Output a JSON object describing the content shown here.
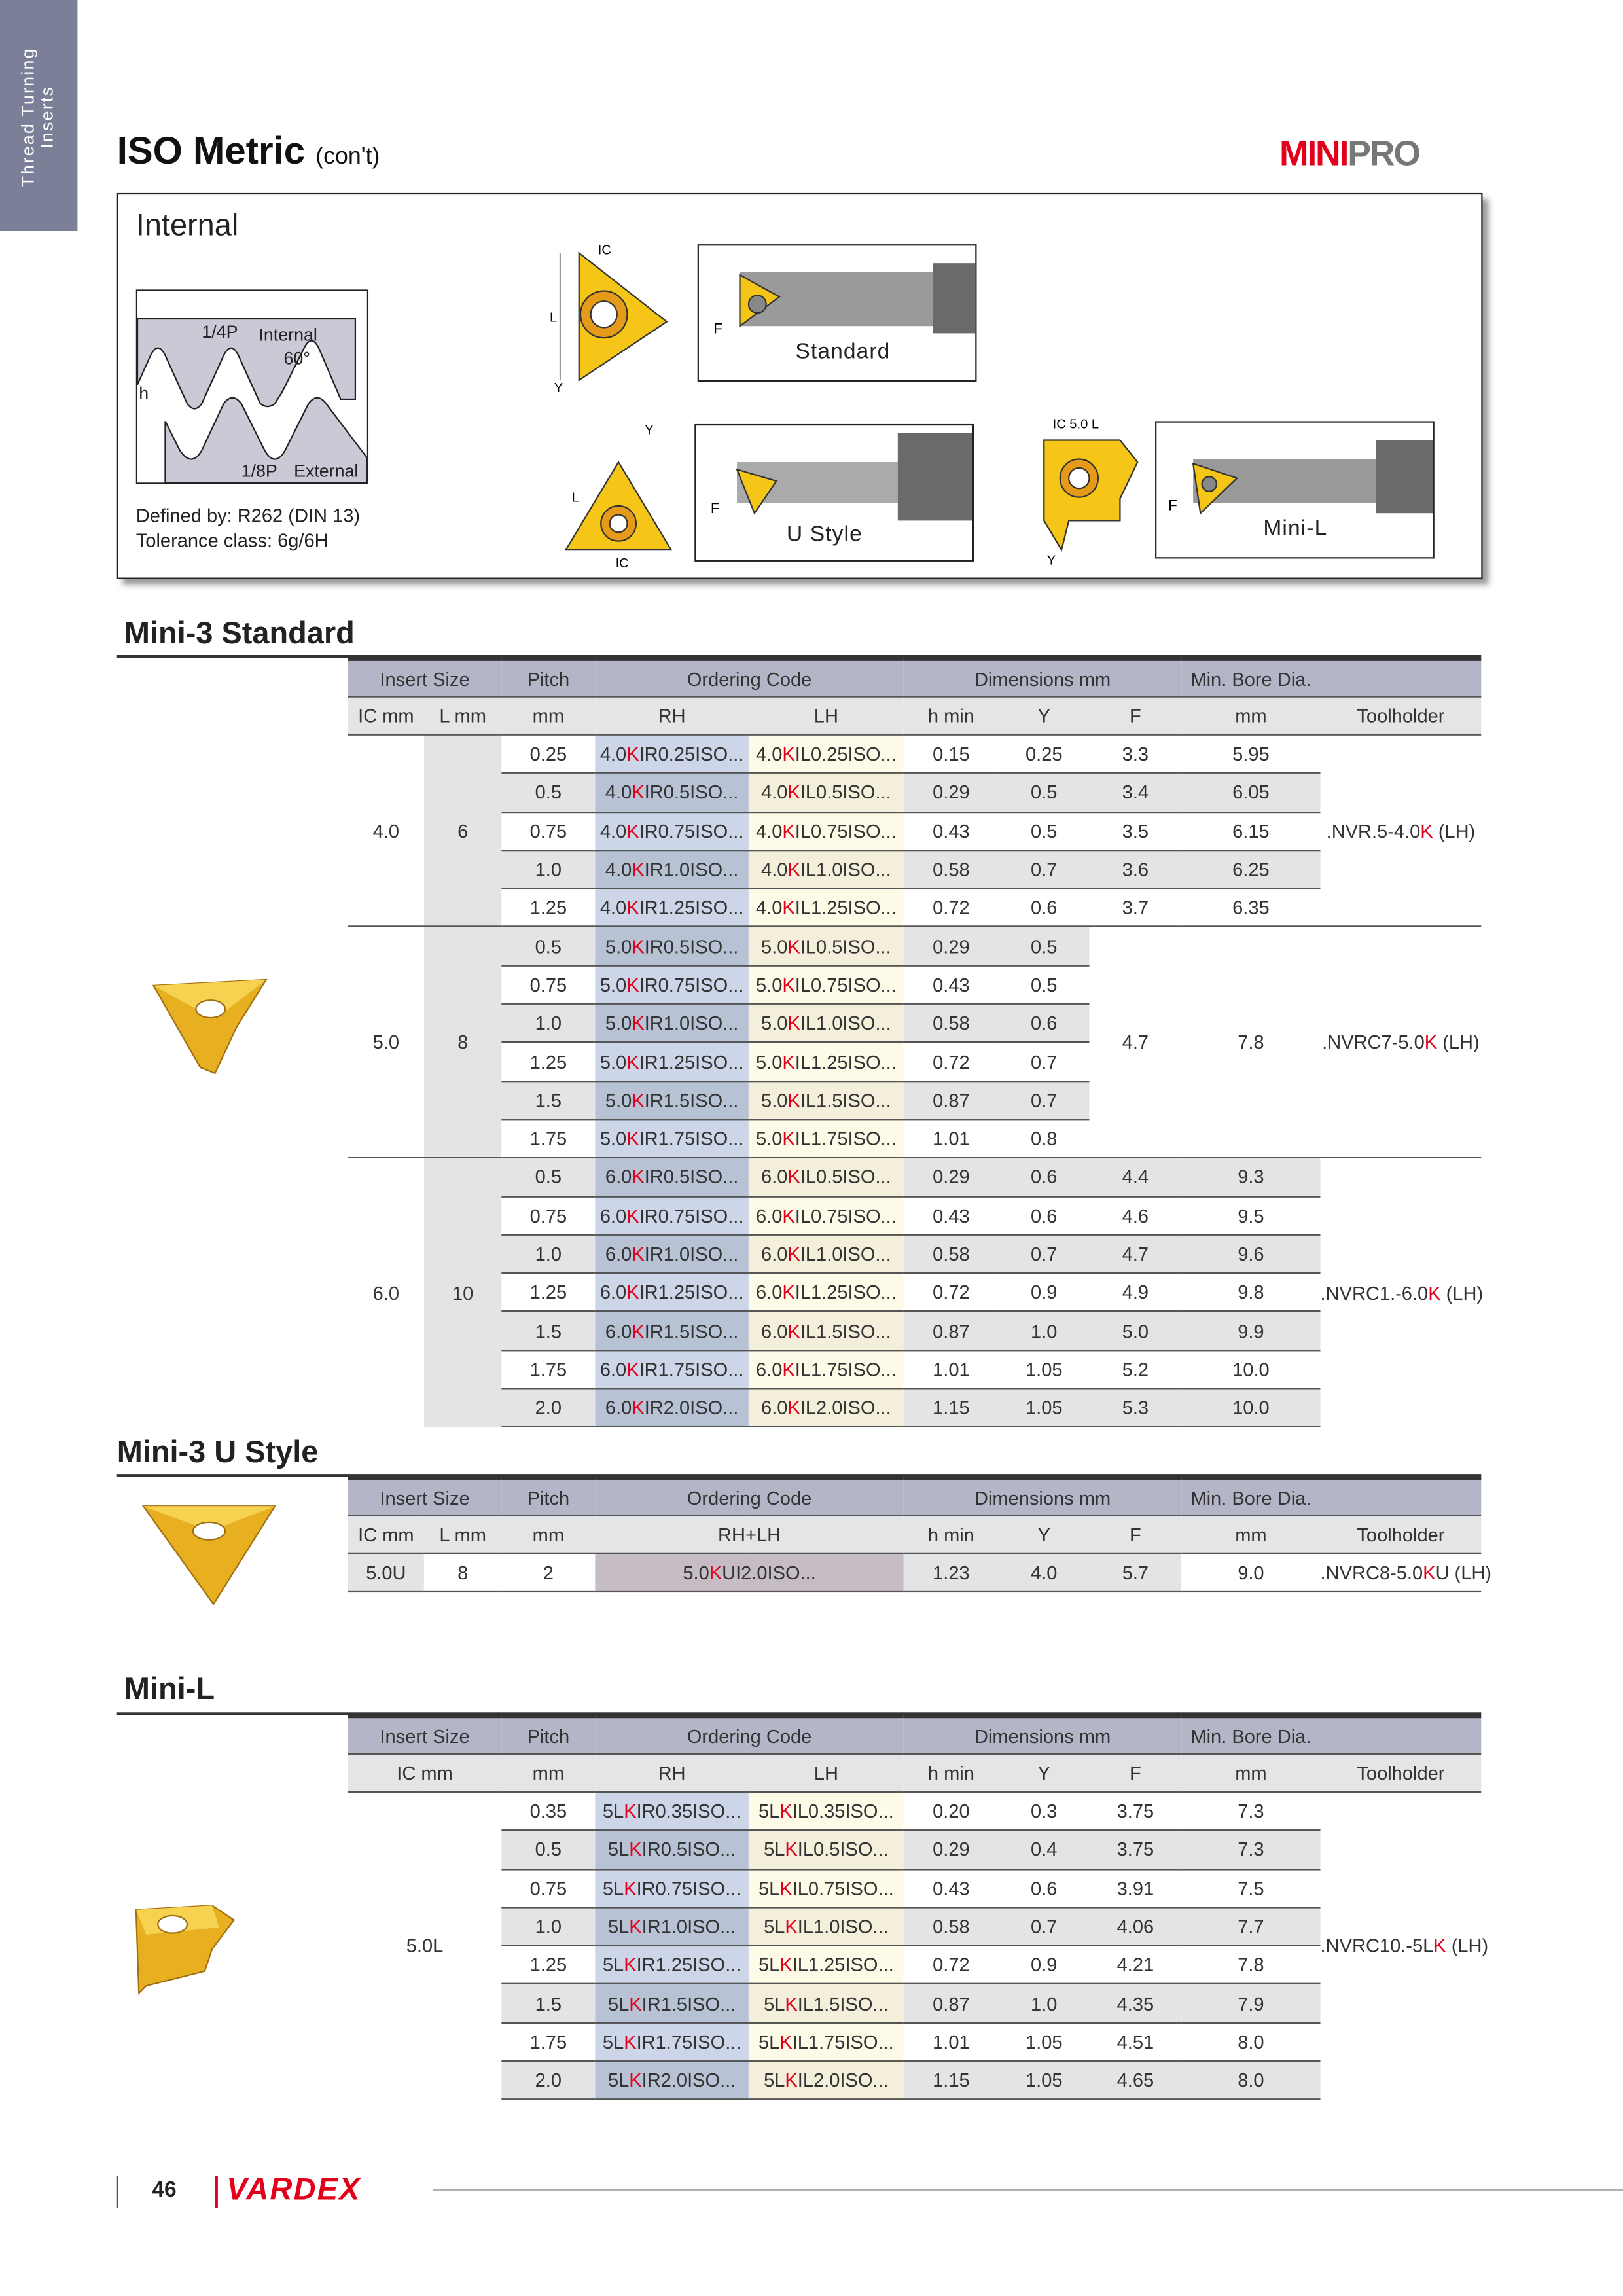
{
  "side_tab": {
    "line1": "Thread Turning",
    "line2": "Inserts"
  },
  "header": {
    "title": "ISO Metric",
    "subtitle": "(con't)",
    "logo": {
      "part1": "MINI",
      "part2": "PRO"
    }
  },
  "intro": {
    "title": "Internal",
    "thread_labels": {
      "quarter_p": "1/4P",
      "internal": "Internal",
      "angle": "60°",
      "h": "h",
      "eighth_p": "1/8P",
      "external": "External"
    },
    "defined_by": "Defined by: R262 (DIN 13)",
    "tolerance": "Tolerance class: 6g/6H",
    "diagrams": [
      {
        "label": "Standard",
        "dims": [
          "IC",
          "L",
          "Y",
          "F"
        ]
      },
      {
        "label": "U Style",
        "dims": [
          "Y",
          "L",
          "IC",
          "F"
        ]
      },
      {
        "label": "Mini-L",
        "dims": [
          "IC 5.0 L",
          "Y",
          "F"
        ]
      }
    ]
  },
  "colors": {
    "accent_red": "#e3001b",
    "insert_gold": "#f5c518",
    "header_band": "#b4b6c7"
  },
  "header_row1": {
    "insert_size": "Insert Size",
    "pitch": "Pitch",
    "ordering_code": "Ordering Code",
    "dimensions": "Dimensions mm",
    "min_bore": "Min. Bore Dia."
  },
  "header_row2": {
    "ic": "IC mm",
    "l": "L mm",
    "pitch": "mm",
    "rh": "RH",
    "lh": "LH",
    "rhlh": "RH+LH",
    "hmin": "h min",
    "y": "Y",
    "f": "F",
    "mm": "mm",
    "toolholder": "Toolholder"
  },
  "mini3_standard": {
    "title": "Mini-3 Standard",
    "groups": [
      {
        "ic": "4.0",
        "l": "6",
        "toolholder": ".NVR.5-4.0K (LH)",
        "rows": [
          {
            "pitch": "0.25",
            "rh": "4.0KIR0.25ISO...",
            "lh": "4.0KIL0.25ISO...",
            "hmin": "0.15",
            "y": "0.25",
            "f": "3.3",
            "mm": "5.95"
          },
          {
            "pitch": "0.5",
            "rh": "4.0KIR0.5ISO...",
            "lh": "4.0KIL0.5ISO...",
            "hmin": "0.29",
            "y": "0.5",
            "f": "3.4",
            "mm": "6.05"
          },
          {
            "pitch": "0.75",
            "rh": "4.0KIR0.75ISO...",
            "lh": "4.0KIL0.75ISO...",
            "hmin": "0.43",
            "y": "0.5",
            "f": "3.5",
            "mm": "6.15"
          },
          {
            "pitch": "1.0",
            "rh": "4.0KIR1.0ISO...",
            "lh": "4.0KIL1.0ISO...",
            "hmin": "0.58",
            "y": "0.7",
            "f": "3.6",
            "mm": "6.25"
          },
          {
            "pitch": "1.25",
            "rh": "4.0KIR1.25ISO...",
            "lh": "4.0KIL1.25ISO...",
            "hmin": "0.72",
            "y": "0.6",
            "f": "3.7",
            "mm": "6.35"
          }
        ]
      },
      {
        "ic": "5.0",
        "l": "8",
        "toolholder": ".NVRC7-5.0K (LH)",
        "f": "4.7",
        "mm": "7.8",
        "rows": [
          {
            "pitch": "0.5",
            "rh": "5.0KIR0.5ISO...",
            "lh": "5.0KIL0.5ISO...",
            "hmin": "0.29",
            "y": "0.5"
          },
          {
            "pitch": "0.75",
            "rh": "5.0KIR0.75ISO...",
            "lh": "5.0KIL0.75ISO...",
            "hmin": "0.43",
            "y": "0.5"
          },
          {
            "pitch": "1.0",
            "rh": "5.0KIR1.0ISO...",
            "lh": "5.0KIL1.0ISO...",
            "hmin": "0.58",
            "y": "0.6"
          },
          {
            "pitch": "1.25",
            "rh": "5.0KIR1.25ISO...",
            "lh": "5.0KIL1.25ISO...",
            "hmin": "0.72",
            "y": "0.7"
          },
          {
            "pitch": "1.5",
            "rh": "5.0KIR1.5ISO...",
            "lh": "5.0KIL1.5ISO...",
            "hmin": "0.87",
            "y": "0.7"
          },
          {
            "pitch": "1.75",
            "rh": "5.0KIR1.75ISO...",
            "lh": "5.0KIL1.75ISO...",
            "hmin": "1.01",
            "y": "0.8"
          }
        ]
      },
      {
        "ic": "6.0",
        "l": "10",
        "toolholder": ".NVRC1.-6.0K (LH)",
        "rows": [
          {
            "pitch": "0.5",
            "rh": "6.0KIR0.5ISO...",
            "lh": "6.0KIL0.5ISO...",
            "hmin": "0.29",
            "y": "0.6",
            "f": "4.4",
            "mm": "9.3"
          },
          {
            "pitch": "0.75",
            "rh": "6.0KIR0.75ISO...",
            "lh": "6.0KIL0.75ISO...",
            "hmin": "0.43",
            "y": "0.6",
            "f": "4.6",
            "mm": "9.5"
          },
          {
            "pitch": "1.0",
            "rh": "6.0KIR1.0ISO...",
            "lh": "6.0KIL1.0ISO...",
            "hmin": "0.58",
            "y": "0.7",
            "f": "4.7",
            "mm": "9.6"
          },
          {
            "pitch": "1.25",
            "rh": "6.0KIR1.25ISO...",
            "lh": "6.0KIL1.25ISO...",
            "hmin": "0.72",
            "y": "0.9",
            "f": "4.9",
            "mm": "9.8"
          },
          {
            "pitch": "1.5",
            "rh": "6.0KIR1.5ISO...",
            "lh": "6.0KIL1.5ISO...",
            "hmin": "0.87",
            "y": "1.0",
            "f": "5.0",
            "mm": "9.9"
          },
          {
            "pitch": "1.75",
            "rh": "6.0KIR1.75ISO...",
            "lh": "6.0KIL1.75ISO...",
            "hmin": "1.01",
            "y": "1.05",
            "f": "5.2",
            "mm": "10.0"
          },
          {
            "pitch": "2.0",
            "rh": "6.0KIR2.0ISO...",
            "lh": "6.0KIL2.0ISO...",
            "hmin": "1.15",
            "y": "1.05",
            "f": "5.3",
            "mm": "10.0"
          }
        ]
      }
    ]
  },
  "mini3_ustyle": {
    "title": "Mini-3 U Style",
    "row": {
      "ic": "5.0U",
      "l": "8",
      "pitch": "2",
      "code": "5.0KUI2.0ISO...",
      "hmin": "1.23",
      "y": "4.0",
      "f": "5.7",
      "mm": "9.0",
      "toolholder": ".NVRC8-5.0KU (LH)"
    }
  },
  "mini_l": {
    "title": "Mini-L",
    "ic": "5.0L",
    "toolholder": ".NVRC10.-5LK (LH)",
    "rows": [
      {
        "pitch": "0.35",
        "rh": "5LKIR0.35ISO...",
        "lh": "5LKIL0.35ISO...",
        "hmin": "0.20",
        "y": "0.3",
        "f": "3.75",
        "mm": "7.3"
      },
      {
        "pitch": "0.5",
        "rh": "5LKIR0.5ISO...",
        "lh": "5LKIL0.5ISO...",
        "hmin": "0.29",
        "y": "0.4",
        "f": "3.75",
        "mm": "7.3"
      },
      {
        "pitch": "0.75",
        "rh": "5LKIR0.75ISO...",
        "lh": "5LKIL0.75ISO...",
        "hmin": "0.43",
        "y": "0.6",
        "f": "3.91",
        "mm": "7.5"
      },
      {
        "pitch": "1.0",
        "rh": "5LKIR1.0ISO...",
        "lh": "5LKIL1.0ISO...",
        "hmin": "0.58",
        "y": "0.7",
        "f": "4.06",
        "mm": "7.7"
      },
      {
        "pitch": "1.25",
        "rh": "5LKIR1.25ISO...",
        "lh": "5LKIL1.25ISO...",
        "hmin": "0.72",
        "y": "0.9",
        "f": "4.21",
        "mm": "7.8"
      },
      {
        "pitch": "1.5",
        "rh": "5LKIR1.5ISO...",
        "lh": "5LKIL1.5ISO...",
        "hmin": "0.87",
        "y": "1.0",
        "f": "4.35",
        "mm": "7.9"
      },
      {
        "pitch": "1.75",
        "rh": "5LKIR1.75ISO...",
        "lh": "5LKIL1.75ISO...",
        "hmin": "1.01",
        "y": "1.05",
        "f": "4.51",
        "mm": "8.0"
      },
      {
        "pitch": "2.0",
        "rh": "5LKIR2.0ISO...",
        "lh": "5LKIL2.0ISO...",
        "hmin": "1.15",
        "y": "1.05",
        "f": "4.65",
        "mm": "8.0"
      }
    ]
  },
  "footer": {
    "page_number": "46",
    "brand": "VARDEX"
  }
}
